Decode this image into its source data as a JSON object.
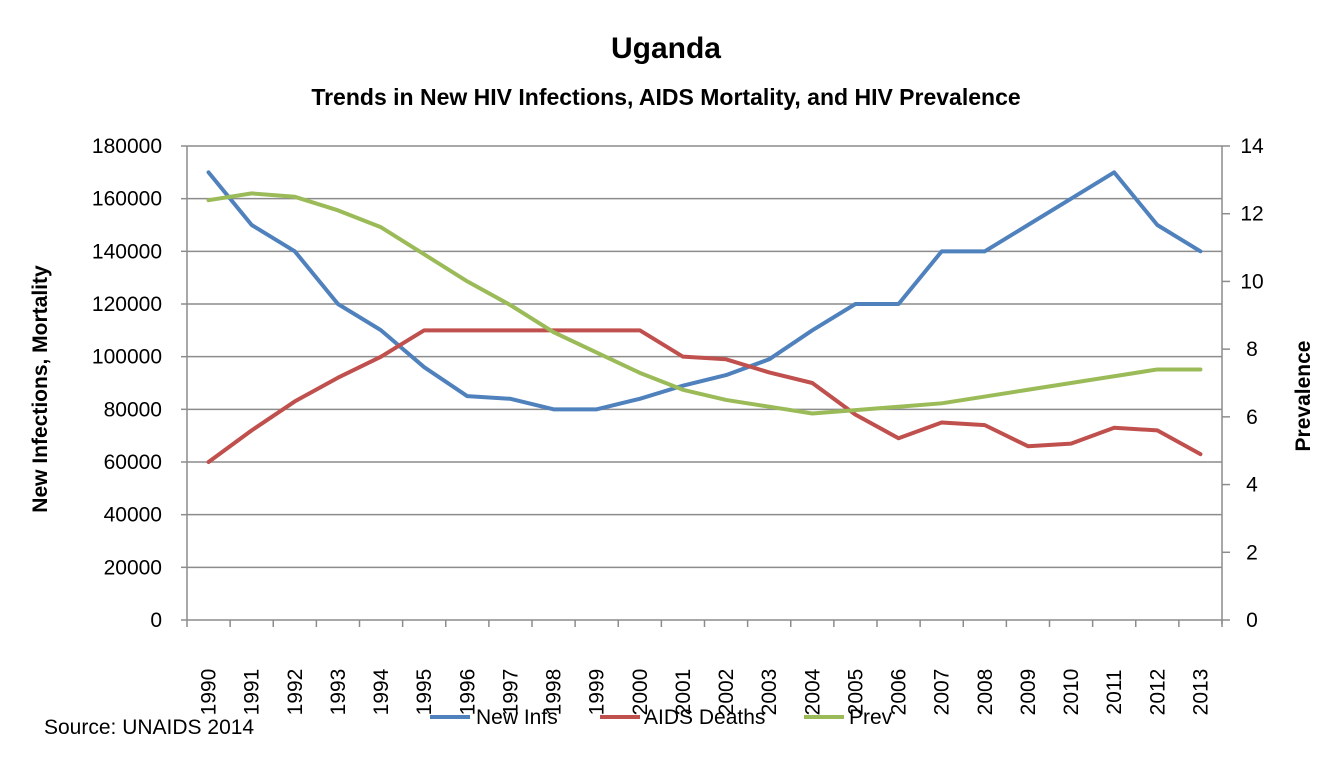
{
  "chart_data": {
    "type": "line",
    "title": "Uganda",
    "subtitle": "Trends in New HIV Infections, AIDS Mortality, and HIV Prevalence",
    "xlabel": "",
    "ylabel": "New Infections, Mortality",
    "y2label": "Prevalence",
    "ylim": [
      0,
      180000
    ],
    "y2lim": [
      0,
      14
    ],
    "yticks": [
      "0",
      "20000",
      "40000",
      "60000",
      "80000",
      "100000",
      "120000",
      "140000",
      "160000",
      "180000"
    ],
    "y2ticks": [
      "0",
      "2",
      "4",
      "6",
      "8",
      "10",
      "12",
      "14"
    ],
    "grid": true,
    "legend_position": "bottom",
    "categories": [
      "1990",
      "1991",
      "1992",
      "1993",
      "1994",
      "1995",
      "1996",
      "1997",
      "1998",
      "1999",
      "2000",
      "2001",
      "2002",
      "2003",
      "2004",
      "2005",
      "2006",
      "2007",
      "2008",
      "2009",
      "2010",
      "2011",
      "2012",
      "2013"
    ],
    "series": [
      {
        "name": "New Infs",
        "axis": "left",
        "color": "#4F81BD",
        "values": [
          170000,
          150000,
          140000,
          120000,
          110000,
          96000,
          85000,
          84000,
          80000,
          80000,
          84000,
          89000,
          93000,
          99000,
          110000,
          120000,
          120000,
          140000,
          140000,
          150000,
          160000,
          170000,
          150000,
          140000
        ]
      },
      {
        "name": "AIDS Deaths",
        "axis": "left",
        "color": "#C0504D",
        "values": [
          60000,
          72000,
          83000,
          92000,
          100000,
          110000,
          110000,
          110000,
          110000,
          110000,
          110000,
          100000,
          99000,
          94000,
          90000,
          78000,
          69000,
          75000,
          74000,
          66000,
          67000,
          73000,
          72000,
          63000
        ]
      },
      {
        "name": "Prev",
        "axis": "right",
        "color": "#9BBB59",
        "values": [
          12.4,
          12.6,
          12.5,
          12.1,
          11.6,
          10.8,
          10.0,
          9.3,
          8.5,
          7.9,
          7.3,
          6.8,
          6.5,
          6.3,
          6.1,
          6.2,
          6.3,
          6.4,
          6.6,
          6.8,
          7.0,
          7.2,
          7.4,
          7.4
        ]
      }
    ],
    "annotations": [
      "Source: UNAIDS 2014"
    ]
  },
  "source_note": "Source: UNAIDS 2014"
}
